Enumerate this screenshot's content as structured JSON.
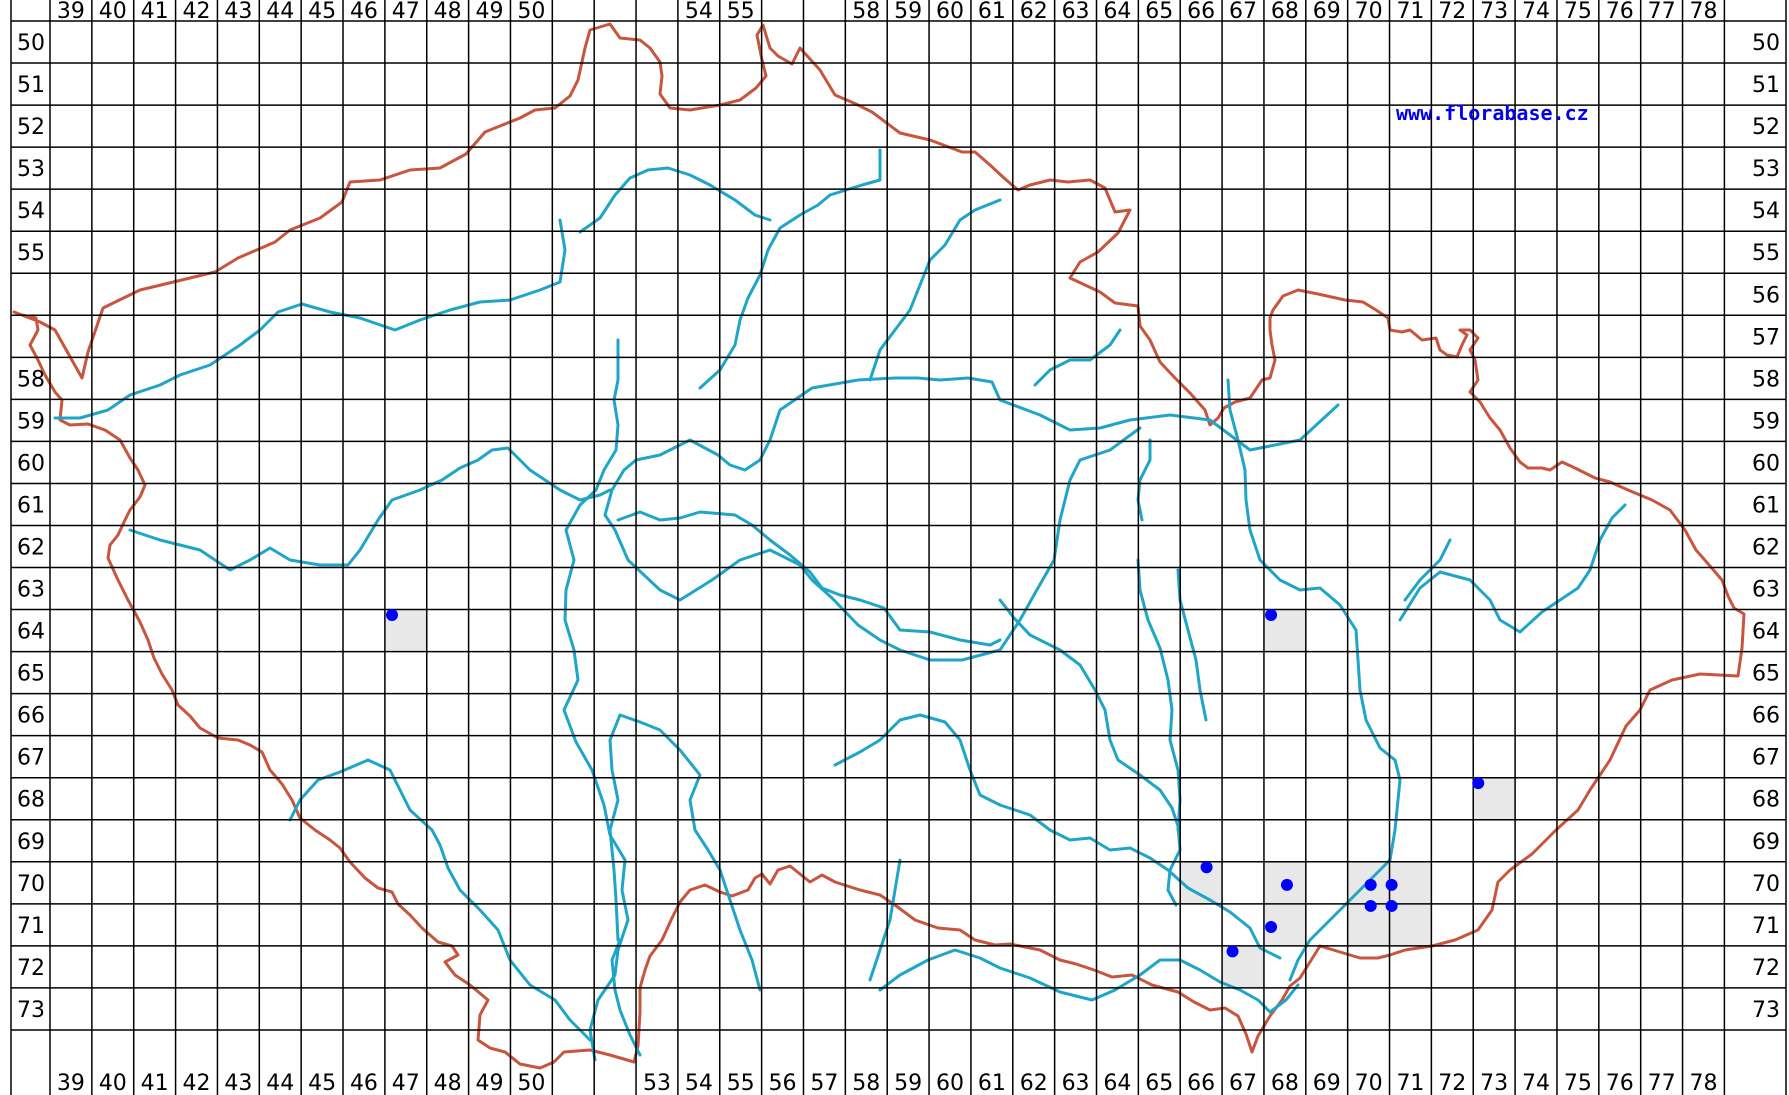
{
  "map": {
    "watermark": "www.florabase.cz",
    "colors": {
      "grid": "#000000",
      "border": "#c8553d",
      "river": "#1fa5c8",
      "occupied_cell": "#e8e8e8",
      "record_dot": "#0000ff"
    },
    "top_column_labels": [
      "39",
      "40",
      "41",
      "42",
      "43",
      "44",
      "45",
      "46",
      "47",
      "48",
      "49",
      "50",
      "",
      "",
      "",
      "54",
      "55",
      "",
      "",
      "58",
      "59",
      "60",
      "61",
      "62",
      "63",
      "64",
      "65",
      "66",
      "67",
      "68",
      "69",
      "70",
      "71",
      "72",
      "73",
      "74",
      "75",
      "76",
      "77",
      "78"
    ],
    "bottom_column_labels": [
      "39",
      "40",
      "41",
      "42",
      "43",
      "44",
      "45",
      "46",
      "47",
      "48",
      "49",
      "50",
      "",
      "",
      "53",
      "54",
      "55",
      "56",
      "57",
      "58",
      "59",
      "60",
      "61",
      "62",
      "63",
      "64",
      "65",
      "66",
      "67",
      "68",
      "69",
      "70",
      "71",
      "72",
      "73",
      "74",
      "75",
      "76",
      "77",
      "78"
    ],
    "left_row_labels": [
      "50",
      "51",
      "52",
      "53",
      "54",
      "55",
      "",
      "",
      "58",
      "59",
      "60",
      "61",
      "62",
      "63",
      "64",
      "65",
      "66",
      "67",
      "68",
      "69",
      "70",
      "71",
      "72",
      "73"
    ],
    "right_row_labels": [
      "50",
      "51",
      "52",
      "53",
      "54",
      "55",
      "56",
      "57",
      "58",
      "59",
      "60",
      "61",
      "62",
      "63",
      "64",
      "65",
      "66",
      "67",
      "68",
      "69",
      "70",
      "71",
      "72",
      "73"
    ],
    "occupied_cells": [
      {
        "col": "47",
        "row": "64"
      },
      {
        "col": "68",
        "row": "64"
      },
      {
        "col": "73",
        "row": "68"
      },
      {
        "col": "66",
        "row": "70"
      },
      {
        "col": "68",
        "row": "70"
      },
      {
        "col": "70",
        "row": "70"
      },
      {
        "col": "71",
        "row": "70"
      },
      {
        "col": "68",
        "row": "71"
      },
      {
        "col": "70",
        "row": "71"
      },
      {
        "col": "71",
        "row": "71"
      },
      {
        "col": "67",
        "row": "72"
      }
    ],
    "record_dots": [
      {
        "col": "47",
        "row": "64"
      },
      {
        "col": "68",
        "row": "64"
      },
      {
        "col": "73",
        "row": "68"
      },
      {
        "col": "66",
        "row": "70"
      },
      {
        "col": "68",
        "row": "70"
      },
      {
        "col": "70",
        "row": "70"
      },
      {
        "col": "71",
        "row": "70"
      },
      {
        "col": "70",
        "row": "71"
      },
      {
        "col": "71",
        "row": "71"
      },
      {
        "col": "68",
        "row": "71"
      },
      {
        "col": "67",
        "row": "72"
      }
    ]
  }
}
